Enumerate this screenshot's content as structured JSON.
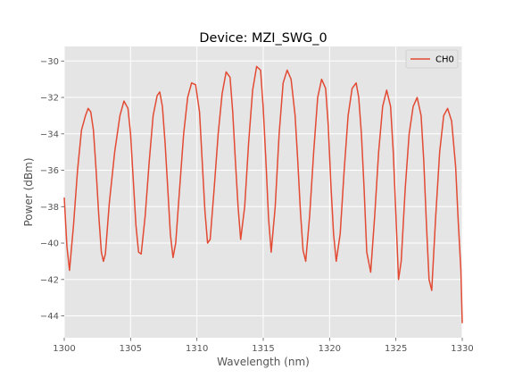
{
  "chart_data": {
    "type": "line",
    "title": "Device: MZI_SWG_0",
    "xlabel": "Wavelength (nm)",
    "ylabel": "Power (dBm)",
    "xlim": [
      1300,
      1330
    ],
    "ylim": [
      -45.2,
      -29.2
    ],
    "xticks": [
      1300,
      1305,
      1310,
      1315,
      1320,
      1325,
      1330
    ],
    "xtick_labels": [
      "1300",
      "1305",
      "1310",
      "1315",
      "1320",
      "1325",
      "1330"
    ],
    "yticks": [
      -30,
      -32,
      -34,
      -36,
      -38,
      -40,
      -42,
      -44
    ],
    "ytick_labels": [
      "−30",
      "−32",
      "−34",
      "−36",
      "−38",
      "−40",
      "−42",
      "−44"
    ],
    "grid": true,
    "legend_position": "top-right",
    "series": [
      {
        "name": "CH0",
        "color": "#E24A33",
        "x": [
          1300.0,
          1300.2,
          1300.4,
          1300.7,
          1301.0,
          1301.3,
          1301.6,
          1301.8,
          1302.0,
          1302.2,
          1302.4,
          1302.6,
          1302.8,
          1302.95,
          1303.1,
          1303.4,
          1303.8,
          1304.2,
          1304.5,
          1304.8,
          1305.0,
          1305.2,
          1305.4,
          1305.6,
          1305.8,
          1306.1,
          1306.4,
          1306.7,
          1307.0,
          1307.2,
          1307.4,
          1307.6,
          1307.8,
          1308.0,
          1308.2,
          1308.4,
          1308.7,
          1309.0,
          1309.3,
          1309.6,
          1309.9,
          1310.2,
          1310.4,
          1310.6,
          1310.8,
          1311.0,
          1311.3,
          1311.6,
          1311.9,
          1312.2,
          1312.5,
          1312.7,
          1312.9,
          1313.1,
          1313.3,
          1313.6,
          1313.9,
          1314.2,
          1314.5,
          1314.8,
          1315.0,
          1315.2,
          1315.4,
          1315.6,
          1315.9,
          1316.2,
          1316.5,
          1316.8,
          1317.1,
          1317.4,
          1317.6,
          1317.8,
          1318.0,
          1318.2,
          1318.5,
          1318.8,
          1319.1,
          1319.4,
          1319.7,
          1319.9,
          1320.1,
          1320.3,
          1320.5,
          1320.8,
          1321.1,
          1321.4,
          1321.7,
          1322.0,
          1322.2,
          1322.4,
          1322.6,
          1322.8,
          1323.1,
          1323.4,
          1323.7,
          1324.0,
          1324.3,
          1324.6,
          1324.8,
          1325.0,
          1325.2,
          1325.4,
          1325.7,
          1326.0,
          1326.3,
          1326.6,
          1326.9,
          1327.1,
          1327.3,
          1327.5,
          1327.7,
          1328.0,
          1328.3,
          1328.6,
          1328.9,
          1329.2,
          1329.5,
          1329.7,
          1329.9,
          1330.0
        ],
        "y": [
          -37.5,
          -40.2,
          -41.5,
          -39.0,
          -36.0,
          -33.8,
          -33.0,
          -32.6,
          -32.8,
          -33.8,
          -36.0,
          -38.5,
          -40.5,
          -41.0,
          -40.6,
          -37.8,
          -35.0,
          -33.0,
          -32.2,
          -32.6,
          -34.0,
          -36.5,
          -39.0,
          -40.5,
          -40.6,
          -38.5,
          -35.6,
          -33.0,
          -31.9,
          -31.7,
          -32.5,
          -34.5,
          -37.0,
          -39.5,
          -40.8,
          -40.0,
          -37.0,
          -34.0,
          -32.0,
          -31.2,
          -31.3,
          -32.8,
          -35.5,
          -38.2,
          -40.0,
          -39.8,
          -37.0,
          -34.0,
          -31.8,
          -30.6,
          -30.9,
          -32.8,
          -35.5,
          -38.0,
          -39.8,
          -38.0,
          -34.5,
          -31.6,
          -30.3,
          -30.5,
          -32.6,
          -35.5,
          -38.6,
          -40.5,
          -38.0,
          -34.0,
          -31.2,
          -30.5,
          -31.0,
          -33.0,
          -35.5,
          -38.2,
          -40.4,
          -41.0,
          -38.5,
          -35.0,
          -32.0,
          -31.0,
          -31.5,
          -33.5,
          -36.8,
          -39.5,
          -41.0,
          -39.5,
          -36.0,
          -33.0,
          -31.5,
          -31.2,
          -32.0,
          -34.0,
          -37.0,
          -40.5,
          -41.6,
          -38.5,
          -35.0,
          -32.5,
          -31.6,
          -32.5,
          -35.0,
          -38.5,
          -42.0,
          -41.0,
          -37.0,
          -34.0,
          -32.5,
          -32.0,
          -33.0,
          -35.5,
          -39.0,
          -42.0,
          -42.6,
          -38.5,
          -35.0,
          -33.0,
          -32.6,
          -33.3,
          -35.8,
          -38.8,
          -41.5,
          -44.4
        ]
      }
    ]
  }
}
